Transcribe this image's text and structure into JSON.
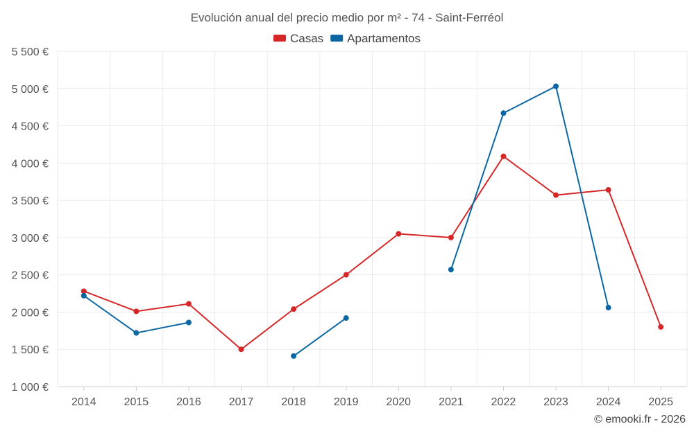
{
  "chart_data": {
    "type": "line",
    "title": "Evolución anual del precio medio por m² - 74 - Saint-Ferréol",
    "categories": [
      "2014",
      "2015",
      "2016",
      "2017",
      "2018",
      "2019",
      "2020",
      "2021",
      "2022",
      "2023",
      "2024",
      "2025"
    ],
    "ylim": [
      1000,
      5500
    ],
    "yticks": [
      1000,
      1500,
      2000,
      2500,
      3000,
      3500,
      4000,
      4500,
      5000,
      5500
    ],
    "ytick_labels": [
      "1 000 €",
      "1 500 €",
      "2 000 €",
      "2 500 €",
      "3 000 €",
      "3 500 €",
      "4 000 €",
      "4 500 €",
      "5 000 €",
      "5 500 €"
    ],
    "grid": true,
    "legend_position": "top-center",
    "series": [
      {
        "name": "Casas",
        "color": "#d62728",
        "values": [
          2280,
          2010,
          2110,
          1500,
          2040,
          2500,
          3050,
          3000,
          4090,
          3570,
          3640,
          1800
        ]
      },
      {
        "name": "Apartamentos",
        "color": "#0a67a3",
        "values": [
          2220,
          1720,
          1860,
          null,
          1410,
          1920,
          null,
          2570,
          4670,
          5030,
          2060,
          null
        ]
      }
    ]
  },
  "credit": "© emooki.fr - 2026"
}
